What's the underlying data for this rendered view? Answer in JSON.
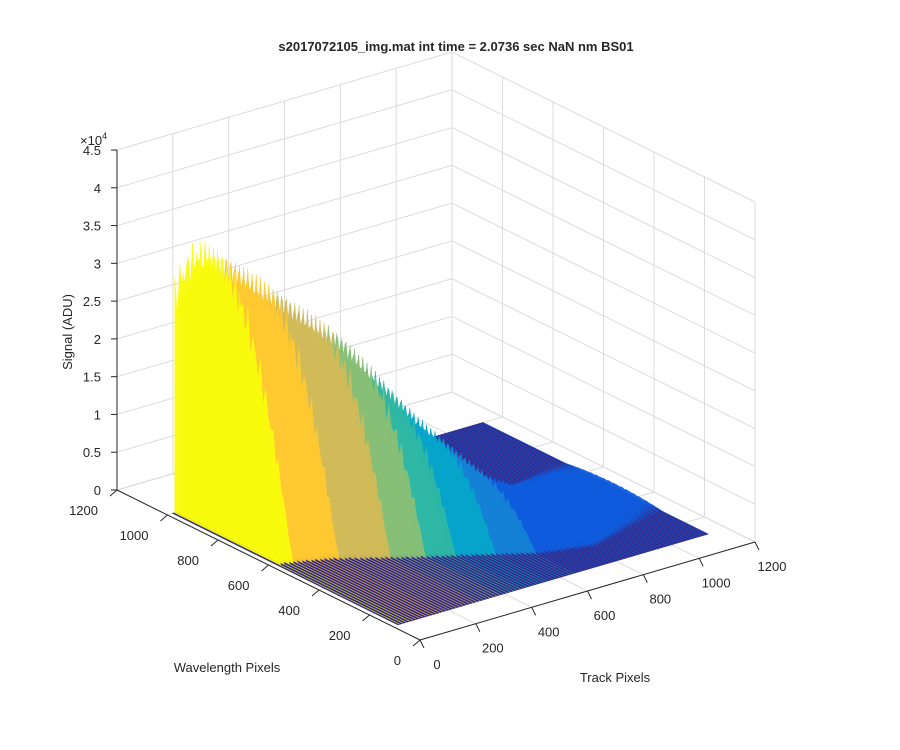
{
  "chart_data": {
    "type": "surface",
    "title": "s2017072105_img.mat int time = 2.0736 sec  NaN nm BS01",
    "xlabel": "Track Pixels",
    "ylabel": "Wavelength Pixels",
    "zlabel": "Signal (ADU)",
    "zexponent": "×10",
    "zexponent_power": "4",
    "xlim": [
      0,
      1200
    ],
    "ylim": [
      0,
      1200
    ],
    "zlim": [
      0,
      45000
    ],
    "xticks": [
      "0",
      "200",
      "400",
      "600",
      "800",
      "1000",
      "1200"
    ],
    "yticks": [
      "0",
      "200",
      "400",
      "600",
      "800",
      "1000",
      "1200"
    ],
    "zticks": [
      "0",
      "0.5",
      "1",
      "1.5",
      "2",
      "2.5",
      "3",
      "3.5",
      "4",
      "4.5"
    ],
    "grid": true,
    "colormap": "parula",
    "colors": [
      "#352a87",
      "#0f5cdd",
      "#1481d6",
      "#06a4ca",
      "#2eb7a4",
      "#87bf77",
      "#d1bb59",
      "#fec832",
      "#f9fb0e"
    ],
    "peaks": [
      {
        "track": 30,
        "wavelength": 880,
        "signal": 38000
      },
      {
        "track": 160,
        "wavelength": 820,
        "signal": 33000
      },
      {
        "track": 330,
        "wavelength": 700,
        "signal": 26000
      },
      {
        "track": 500,
        "wavelength": 580,
        "signal": 15000
      },
      {
        "track": 660,
        "wavelength": 470,
        "signal": 7000
      },
      {
        "track": 820,
        "wavelength": 420,
        "signal": 3500
      },
      {
        "track": 960,
        "wavelength": 450,
        "signal": 1500
      },
      {
        "track": 1100,
        "wavelength": 480,
        "signal": 600
      }
    ]
  }
}
